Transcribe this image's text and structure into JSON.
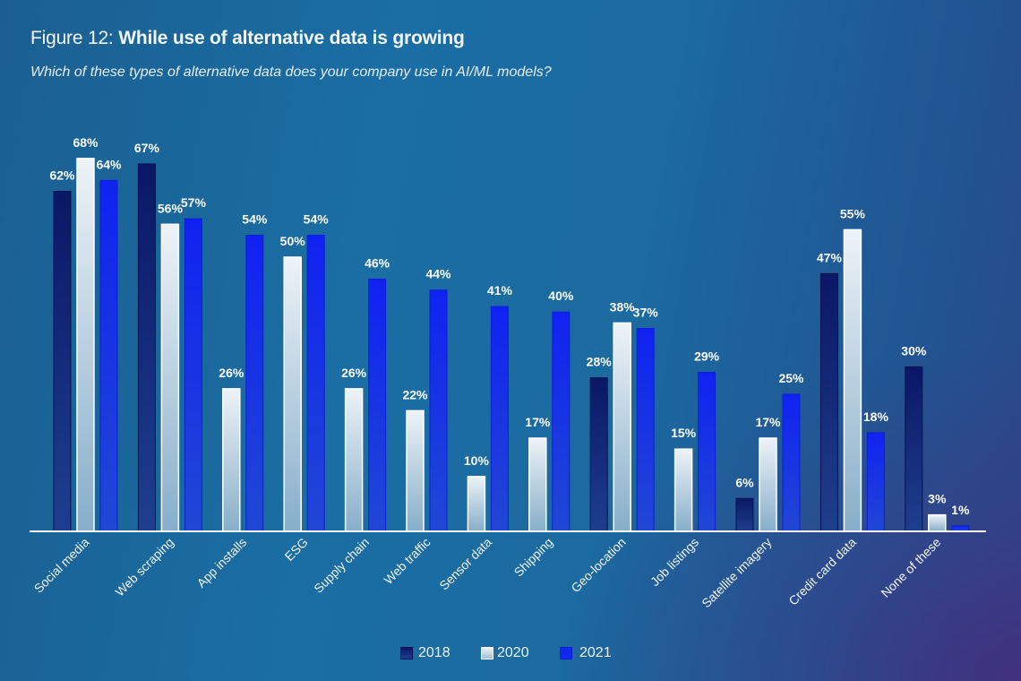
{
  "title": {
    "prefix": "Figure 12:",
    "text": "While use of alternative data is growing"
  },
  "subtitle": "Which of these types of alternative data does your company use in AI/ML models?",
  "colors": {
    "2018": "#0b1d6e",
    "2020": "#e6eef4",
    "2021": "#1228ee",
    "axis": "#ffffff"
  },
  "chart_data": {
    "type": "bar",
    "title": "Figure 12: While use of alternative data is growing",
    "subtitle": "Which of these types of alternative data does your company use in AI/ML models?",
    "xlabel": "",
    "ylabel": "",
    "ylim": [
      0,
      70
    ],
    "grid": false,
    "legend_position": "bottom-center",
    "value_format": "percent",
    "categories": [
      "Social media",
      "Web scraping",
      "App installs",
      "ESG",
      "Supply chain",
      "Web traffic",
      "Sensor data",
      "Shipping",
      "Geo-location",
      "Job listings",
      "Satellite imagery",
      "Credit card data",
      "None of these"
    ],
    "series": [
      {
        "name": "2018",
        "values": [
          62,
          67,
          null,
          null,
          null,
          null,
          null,
          null,
          28,
          null,
          6,
          47,
          30
        ]
      },
      {
        "name": "2020",
        "values": [
          68,
          56,
          26,
          50,
          26,
          22,
          10,
          17,
          38,
          15,
          17,
          55,
          3
        ]
      },
      {
        "name": "2021",
        "values": [
          64,
          57,
          54,
          54,
          46,
          44,
          41,
          40,
          37,
          29,
          25,
          18,
          1
        ]
      }
    ]
  },
  "legend": [
    {
      "label": "2018"
    },
    {
      "label": "2020"
    },
    {
      "label": "2021"
    }
  ]
}
